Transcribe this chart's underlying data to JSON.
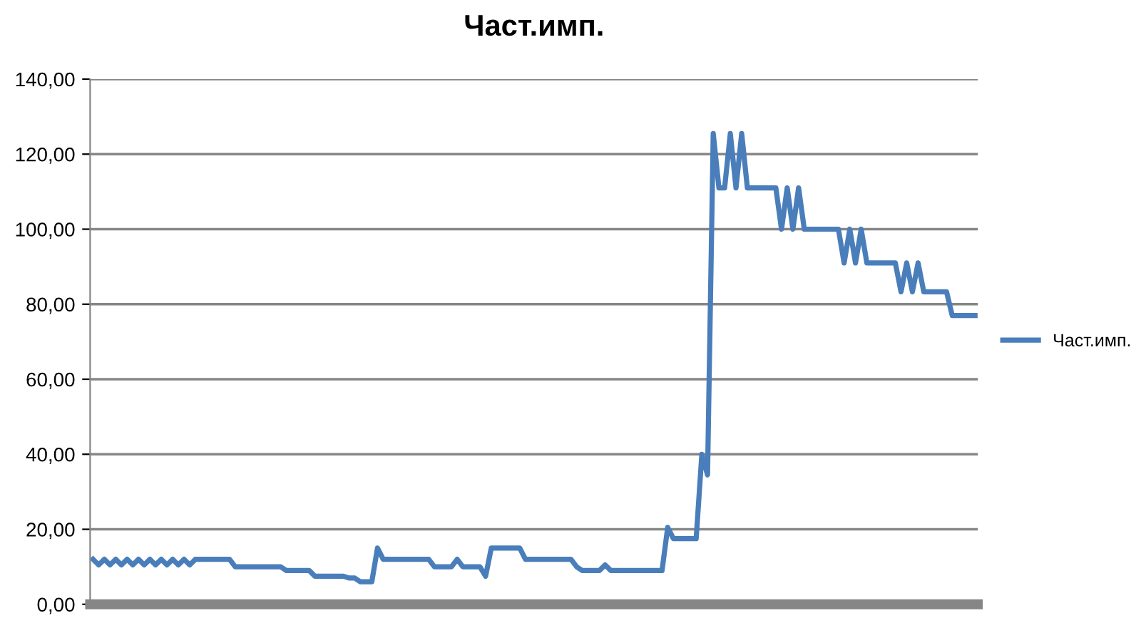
{
  "chart_data": {
    "type": "line",
    "title": "Част.имп.",
    "categories": [
      null,
      null,
      null,
      null,
      null,
      null,
      null,
      null,
      null,
      null,
      null,
      null,
      null,
      null,
      null,
      null,
      null,
      null,
      null,
      null,
      null,
      null,
      null,
      null,
      null,
      null,
      null,
      null,
      null,
      null,
      null,
      null,
      null,
      null,
      null,
      null,
      null,
      null,
      null,
      null,
      null,
      null,
      null,
      null,
      null,
      null,
      null,
      null,
      null,
      null,
      null,
      null,
      null,
      null,
      null,
      null,
      null,
      null,
      null,
      null,
      null,
      null,
      null,
      null,
      null,
      null,
      null,
      null,
      null,
      null,
      null,
      null,
      null,
      null,
      null,
      null,
      null,
      null,
      null,
      null,
      null,
      null,
      null,
      null,
      null,
      null,
      null,
      null,
      null,
      null,
      null,
      null,
      null,
      null,
      null,
      null,
      null,
      null,
      null,
      null,
      null,
      null,
      null,
      null,
      null,
      null,
      null,
      null,
      null,
      null,
      null,
      null,
      null,
      null,
      null,
      null,
      null,
      null,
      null,
      null,
      null,
      null,
      null,
      null,
      null,
      null,
      null,
      null,
      null,
      null,
      null,
      null,
      null,
      null,
      null,
      null,
      null,
      null,
      null,
      null,
      null,
      null,
      null,
      null,
      null,
      null,
      null,
      null,
      null,
      null,
      null,
      null,
      null,
      null,
      null,
      null
    ],
    "series": [
      {
        "name": "Част.имп.",
        "color": "#4a7ebb",
        "values": [
          12,
          10.5,
          12,
          10.5,
          12,
          10.5,
          12,
          10.5,
          12,
          10.5,
          12,
          10.5,
          12,
          10.5,
          12,
          10.5,
          12,
          10.5,
          12,
          12,
          12,
          12,
          12,
          12,
          12,
          10,
          10,
          10,
          10,
          10,
          10,
          10,
          10,
          10,
          9,
          9,
          9,
          9,
          9,
          7.5,
          7.5,
          7.5,
          7.5,
          7.5,
          7.5,
          7,
          7,
          6,
          6,
          6,
          15,
          12,
          12,
          12,
          12,
          12,
          12,
          12,
          12,
          12,
          10,
          10,
          10,
          10,
          12,
          10,
          10,
          10,
          10,
          7.5,
          15,
          15,
          15,
          15,
          15,
          15,
          12,
          12,
          12,
          12,
          12,
          12,
          12,
          12,
          12,
          10,
          9,
          9,
          9,
          9,
          10.5,
          9,
          9,
          9,
          9,
          9,
          9,
          9,
          9,
          9,
          9,
          20.5,
          17.5,
          17.5,
          17.5,
          17.5,
          17.5,
          40,
          34.5,
          125.5,
          111,
          111,
          125.5,
          111,
          125.5,
          111,
          111,
          111,
          111,
          111,
          111,
          100,
          111,
          100,
          111,
          100,
          100,
          100,
          100,
          100,
          100,
          100,
          91,
          100,
          91,
          100,
          91,
          91,
          91,
          91,
          91,
          91,
          83.3,
          91,
          83.3,
          91,
          83.3,
          83.3,
          83.3,
          83.3,
          83.3,
          77,
          77,
          77,
          77,
          77
        ]
      }
    ],
    "ylim": [
      0,
      140
    ],
    "yticks": [
      {
        "value": 0,
        "label": "0,00"
      },
      {
        "value": 20,
        "label": "20,00"
      },
      {
        "value": 40,
        "label": "40,00"
      },
      {
        "value": 60,
        "label": "60,00"
      },
      {
        "value": 80,
        "label": "80,00"
      },
      {
        "value": 100,
        "label": "100,00"
      },
      {
        "value": 120,
        "label": "120,00"
      },
      {
        "value": 140,
        "label": "140,00"
      }
    ],
    "grid": "y",
    "legend": "right",
    "tick_labels": "y",
    "marker": "none",
    "line_style": "solid"
  }
}
